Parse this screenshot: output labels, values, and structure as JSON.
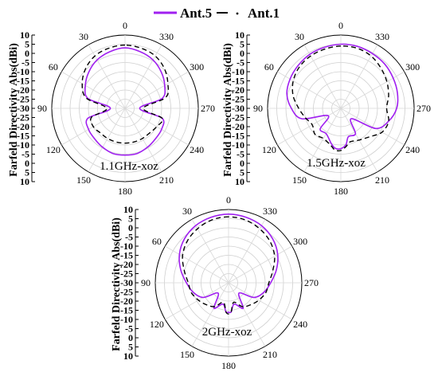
{
  "legend": [
    {
      "name": "Ant.5",
      "color": "#a020f0",
      "style": "solid"
    },
    {
      "name": "Ant.1",
      "color": "#000000",
      "style": "dash-dot"
    }
  ],
  "chart_data": [
    {
      "type": "polar-line",
      "annotation": "1.1GHz-xoz",
      "ylabel": "Farfeld Directivity Abs(dBi)",
      "radial_range": [
        -30,
        10
      ],
      "radial_tick_labels": [
        "10",
        "5",
        "0",
        "-5",
        "-10",
        "-15",
        "-20",
        "-25",
        "-30",
        "-25",
        "-20",
        "-15",
        "-10",
        "-5",
        "0",
        "5",
        "10"
      ],
      "angle_tick_labels": [
        "0",
        "30",
        "60",
        "90",
        "120",
        "150",
        "180",
        "210",
        "240",
        "270",
        "300",
        "330"
      ],
      "angle_direction": "counter-clockwise, 0 at top",
      "grid": true,
      "series": [
        {
          "name": "Ant.5",
          "theta": [
            0,
            15,
            30,
            45,
            60,
            75,
            90,
            105,
            120,
            135,
            150,
            165,
            180,
            195,
            210,
            225,
            240,
            255,
            270,
            285,
            300,
            315,
            330,
            345
          ],
          "r": [
            3,
            2,
            0.5,
            -2,
            -5,
            -9,
            -22,
            -9,
            -7,
            -6.5,
            -5.5,
            -4.5,
            -4.5,
            -4.5,
            -5.5,
            -6.5,
            -7,
            -9,
            -22,
            -9,
            -5,
            -2,
            0.5,
            2
          ]
        },
        {
          "name": "Ant.1",
          "theta": [
            0,
            15,
            30,
            45,
            60,
            75,
            90,
            105,
            120,
            135,
            150,
            165,
            180,
            195,
            210,
            225,
            240,
            255,
            270,
            285,
            300,
            315,
            330,
            345
          ],
          "r": [
            4.5,
            4,
            3,
            0.5,
            -3,
            -8,
            -20,
            -11,
            -10,
            -11,
            -11,
            -11,
            -11,
            -11,
            -11,
            -11,
            -10,
            -9,
            -20,
            -7,
            -3,
            0.5,
            3,
            4
          ]
        }
      ]
    },
    {
      "type": "polar-line",
      "annotation": "1.5GHz-xoz",
      "ylabel": "Farfeld Directivity Abs(dBi)",
      "radial_range": [
        -30,
        10
      ],
      "radial_tick_labels": [
        "10",
        "5",
        "0",
        "-5",
        "-10",
        "-15",
        "-20",
        "-25",
        "-30",
        "-25",
        "-20",
        "-15",
        "-10",
        "-5",
        "0",
        "5",
        "10"
      ],
      "angle_tick_labels": [
        "0",
        "30",
        "60",
        "90",
        "120",
        "150",
        "180",
        "210",
        "240",
        "270",
        "300",
        "330"
      ],
      "angle_direction": "counter-clockwise, 0 at top",
      "grid": true,
      "series": [
        {
          "name": "Ant.5",
          "theta": [
            0,
            15,
            30,
            45,
            60,
            75,
            90,
            105,
            120,
            135,
            150,
            165,
            172,
            180,
            188,
            195,
            210,
            225,
            240,
            255,
            270,
            285,
            300,
            315,
            330,
            345
          ],
          "r": [
            5,
            4.5,
            4,
            3,
            2,
            0.5,
            -3,
            -8,
            -22,
            -14,
            -14,
            -10,
            -8,
            -8,
            -10,
            -14,
            -14,
            -22,
            -8,
            -3,
            0.5,
            2,
            3,
            4,
            4.5,
            5
          ]
        },
        {
          "name": "Ant.1",
          "theta": [
            0,
            15,
            30,
            45,
            60,
            75,
            90,
            105,
            120,
            135,
            150,
            165,
            172,
            180,
            188,
            195,
            210,
            225,
            240,
            255,
            270,
            285,
            300,
            315,
            330,
            345
          ],
          "r": [
            4,
            3.5,
            3,
            2,
            0,
            -3,
            -7,
            -10,
            -12,
            -10,
            -11,
            -9,
            -7,
            -7,
            -9,
            -11,
            -10,
            -8,
            -4,
            -3,
            -5,
            -3,
            -1,
            1,
            3,
            4
          ]
        }
      ]
    },
    {
      "type": "polar-line",
      "annotation": "2GHz-xoz",
      "ylabel": "Farfeld Directivity Abs(dBi)",
      "radial_range": [
        -30,
        10
      ],
      "radial_tick_labels": [
        "10",
        "5",
        "0",
        "-5",
        "-10",
        "-15",
        "-20",
        "-25",
        "-30",
        "-25",
        "-20",
        "-15",
        "-10",
        "-5",
        "0",
        "5",
        "10"
      ],
      "angle_tick_labels": [
        "0",
        "30",
        "60",
        "90",
        "120",
        "150",
        "180",
        "210",
        "240",
        "270",
        "300",
        "330"
      ],
      "angle_direction": "counter-clockwise, 0 at top",
      "grid": true,
      "series": [
        {
          "name": "Ant.5",
          "theta": [
            0,
            15,
            30,
            45,
            60,
            75,
            90,
            105,
            120,
            135,
            150,
            165,
            175,
            180,
            185,
            195,
            210,
            225,
            240,
            255,
            270,
            285,
            300,
            315,
            330,
            345
          ],
          "r": [
            7.5,
            7,
            6,
            4,
            1,
            -3,
            -7,
            -10,
            -14,
            -22,
            -14,
            -18,
            -14,
            -14,
            -14,
            -18,
            -14,
            -22,
            -14,
            -10,
            -7,
            -3,
            1,
            4,
            6,
            7
          ]
        },
        {
          "name": "Ant.1",
          "theta": [
            0,
            15,
            30,
            45,
            60,
            75,
            90,
            105,
            120,
            135,
            150,
            165,
            175,
            180,
            185,
            195,
            210,
            225,
            240,
            255,
            270,
            285,
            300,
            315,
            330,
            345
          ],
          "r": [
            6,
            5.5,
            4,
            2,
            -1,
            -5,
            -8,
            -9,
            -11,
            -13,
            -15,
            -19,
            -14,
            -13,
            -14,
            -19,
            -15,
            -13,
            -11,
            -9,
            -8,
            -5,
            -1,
            2,
            4,
            5.5
          ]
        }
      ]
    }
  ]
}
